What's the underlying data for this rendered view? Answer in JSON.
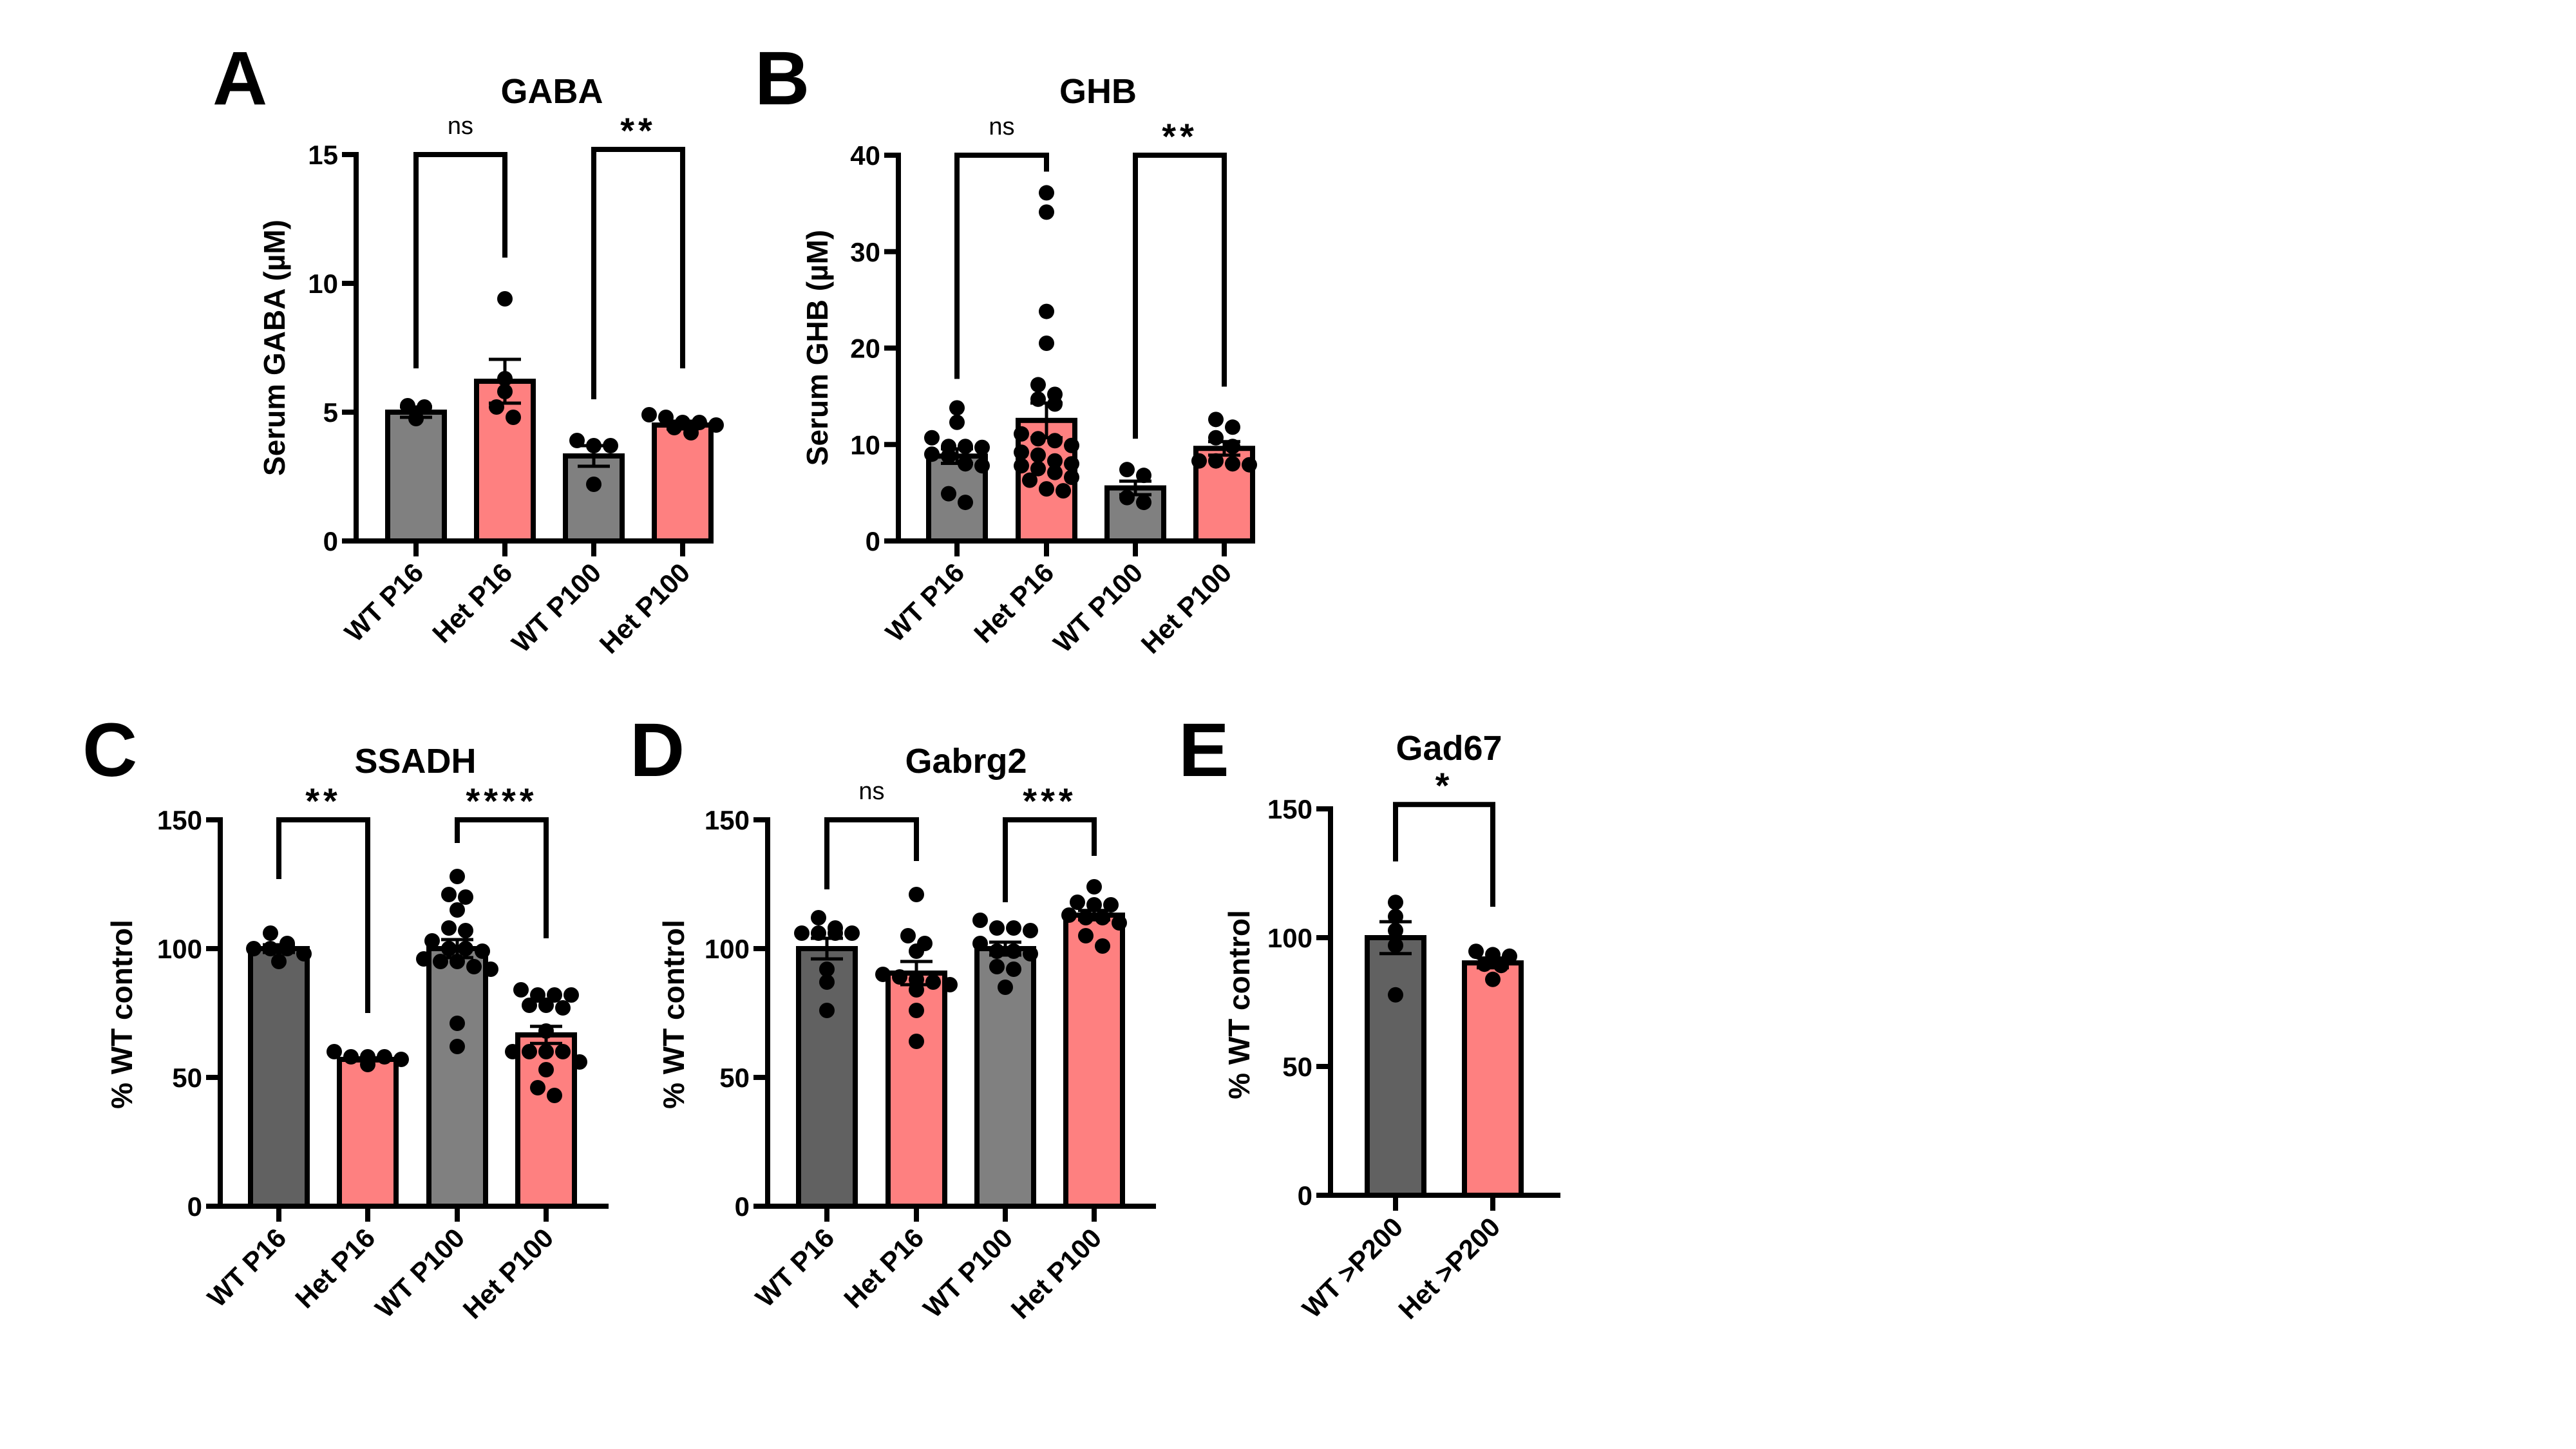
{
  "figure": {
    "background": "#ffffff",
    "colors": {
      "wt_p16": "#616161",
      "wt_p16_gaba_ghb": "#808080",
      "wt_p100": "#808080",
      "het": "#fe8080",
      "outline": "#000000"
    }
  },
  "chart_data": [
    {
      "panel": "A",
      "type": "bar",
      "title": "GABA",
      "ylabel": "Serum GABA (µM)",
      "xlabel": "",
      "ylim": [
        0,
        15
      ],
      "yticks": [
        0,
        5,
        10,
        15
      ],
      "categories": [
        "WT P16",
        "Het P16",
        "WT P100",
        "Het P100"
      ],
      "bar_colors": [
        "#808080",
        "#fe8080",
        "#808080",
        "#fe8080"
      ],
      "values": [
        5.0,
        6.2,
        3.3,
        4.5
      ],
      "sem": [
        0.2,
        0.85,
        0.4,
        0.15
      ],
      "points": [
        [
          5.25,
          5.2,
          4.75
        ],
        [
          9.4,
          6.3,
          5.8,
          5.2,
          4.8
        ],
        [
          3.9,
          3.7,
          3.7,
          2.2
        ],
        [
          4.9,
          4.8,
          4.6,
          4.6,
          4.5,
          4.4,
          4.2
        ]
      ],
      "comparisons": [
        {
          "groups": [
            0,
            1
          ],
          "label": "ns",
          "level": 15.0,
          "left_end": 6.7,
          "right_end": 11.0
        },
        {
          "groups": [
            2,
            3
          ],
          "label": "**",
          "level": 15.2,
          "left_end": 5.5,
          "right_end": 6.7
        }
      ]
    },
    {
      "panel": "B",
      "type": "bar",
      "title": "GHB",
      "ylabel": "Serum GHB (µM)",
      "xlabel": "",
      "ylim": [
        0,
        40
      ],
      "yticks": [
        0,
        10,
        20,
        30,
        40
      ],
      "categories": [
        "WT P16",
        "Het P16",
        "WT P100",
        "Het P100"
      ],
      "bar_colors": [
        "#808080",
        "#fe8080",
        "#808080",
        "#fe8080"
      ],
      "values": [
        8.8,
        12.5,
        5.5,
        9.6
      ],
      "sem": [
        0.75,
        1.8,
        0.7,
        0.7
      ],
      "points": [
        [
          13.8,
          12.3,
          10.7,
          9.8,
          9.7,
          9.8,
          9.0,
          8.8,
          8.0,
          7.8,
          4.9,
          4.0
        ],
        [
          36.1,
          34.1,
          23.8,
          20.5,
          16.2,
          15.2,
          14.7,
          14.2,
          11.1,
          10.6,
          10.4,
          9.9,
          9.2,
          8.9,
          8.3,
          8.0,
          7.8,
          7.5,
          7.1,
          6.6,
          6.3,
          5.4,
          5.2
        ],
        [
          7.4,
          6.8,
          4.5,
          4.0
        ],
        [
          12.6,
          11.8,
          10.7,
          9.8,
          8.3,
          8.3,
          8.0,
          7.9
        ]
      ],
      "comparisons": [
        {
          "groups": [
            0,
            1
          ],
          "label": "ns",
          "level": 40.0,
          "left_end": 16.8,
          "right_end": 38.3
        },
        {
          "groups": [
            2,
            3
          ],
          "label": "**",
          "level": 40.0,
          "left_end": 10.6,
          "right_end": 16.0
        }
      ]
    },
    {
      "panel": "C",
      "type": "bar",
      "title": "SSADH",
      "ylabel": "% WT control",
      "xlabel": "",
      "ylim": [
        0,
        150
      ],
      "yticks": [
        0,
        50,
        100,
        150
      ],
      "categories": [
        "WT P16",
        "Het P16",
        "WT P100",
        "Het P100"
      ],
      "bar_colors": [
        "#616161",
        "#fe8080",
        "#808080",
        "#fe8080"
      ],
      "values": [
        100,
        57,
        100,
        66.5
      ],
      "sem": [
        1.5,
        0.6,
        3.5,
        3.3
      ],
      "points": [
        [
          100,
          100,
          102,
          106,
          95,
          98,
          100
        ],
        [
          57,
          58,
          58,
          58,
          60,
          55
        ],
        [
          128,
          120,
          121,
          115,
          108,
          107,
          103,
          100,
          100,
          99,
          96,
          93,
          95,
          92,
          95,
          71,
          62
        ],
        [
          84,
          82,
          82,
          82,
          78,
          77,
          78,
          68,
          60,
          60,
          60,
          60,
          56,
          53,
          46,
          43
        ]
      ],
      "comparisons": [
        {
          "groups": [
            0,
            1
          ],
          "label": "**",
          "level": 150,
          "left_end": 127,
          "right_end": 75
        },
        {
          "groups": [
            2,
            3
          ],
          "label": "****",
          "level": 150,
          "left_end": 141,
          "right_end": 104
        }
      ]
    },
    {
      "panel": "D",
      "type": "bar",
      "title": "Gabrg2",
      "ylabel": "% WT control",
      "xlabel": "",
      "ylim": [
        0,
        150
      ],
      "yticks": [
        0,
        50,
        100,
        150
      ],
      "categories": [
        "WT P16",
        "Het P16",
        "WT P100",
        "Het P100"
      ],
      "bar_colors": [
        "#616161",
        "#fe8080",
        "#808080",
        "#fe8080"
      ],
      "values": [
        100,
        90.5,
        100,
        113
      ],
      "sem": [
        4,
        4.5,
        2.5,
        1.8
      ],
      "points": [
        [
          112,
          108,
          106,
          106,
          106,
          106,
          92,
          87,
          76
        ],
        [
          121,
          105,
          102,
          99,
          90,
          89,
          88,
          87,
          86,
          84,
          76,
          64
        ],
        [
          111,
          108,
          108,
          107,
          102,
          99,
          99,
          98,
          93,
          92,
          85
        ],
        [
          124,
          118,
          117,
          117,
          113,
          112,
          112,
          110,
          105,
          101
        ]
      ],
      "comparisons": [
        {
          "groups": [
            0,
            1
          ],
          "label": "ns",
          "level": 150,
          "left_end": 123,
          "right_end": 134
        },
        {
          "groups": [
            2,
            3
          ],
          "label": "***",
          "level": 150,
          "left_end": 118,
          "right_end": 136
        }
      ]
    },
    {
      "panel": "E",
      "type": "bar",
      "title": "Gad67",
      "ylabel": "% WT control",
      "xlabel": "",
      "ylim": [
        0,
        150
      ],
      "yticks": [
        0,
        50,
        100,
        150
      ],
      "categories": [
        "WT >P200",
        "Het >P200"
      ],
      "bar_colors": [
        "#616161",
        "#fe8080"
      ],
      "values": [
        100,
        90.2
      ],
      "sem": [
        6.2,
        1.9
      ],
      "points": [
        [
          113.7,
          108.2,
          102.8,
          97,
          77.8
        ],
        [
          93.4,
          92.8,
          94.7,
          89.7,
          89.2,
          83.8
        ]
      ],
      "comparisons": [
        {
          "groups": [
            0,
            1
          ],
          "label": "*",
          "level": 151.7,
          "left_end": 129.6,
          "right_end": 112
        }
      ]
    }
  ]
}
